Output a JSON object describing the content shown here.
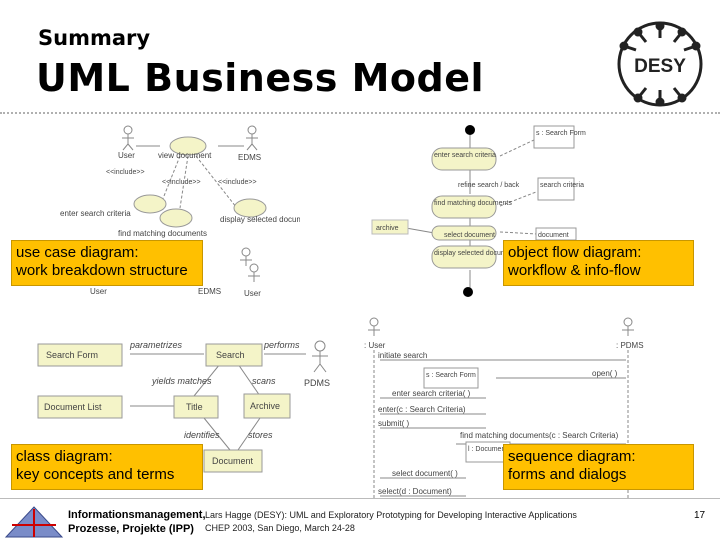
{
  "header": {
    "subtitle": "Summary",
    "title": "UML Business Model",
    "logo_text": "DESY"
  },
  "use_case": {
    "actors": [
      "User",
      "EDMS",
      "User",
      "EDMS",
      "User"
    ],
    "use_cases": [
      "view document",
      "enter search criteria",
      "find matching documents",
      "display selected document"
    ],
    "include_labels": [
      "<<include>>",
      "<<include>>",
      "<<include>>"
    ]
  },
  "activity": {
    "nodes": [
      "enter search criteria",
      "refine search / back",
      "find matching documents",
      "select document",
      "display selected document",
      "archive"
    ],
    "objects": [
      "s : Search Form",
      "search criteria",
      "document"
    ]
  },
  "class_diagram": {
    "classes": [
      "Search Form",
      "Search",
      "Document List",
      "Title",
      "Archive",
      "Document",
      "PDMS"
    ],
    "associations": [
      "parametrizes",
      "performs",
      "yields matches",
      "scans",
      "identifies",
      "stores"
    ]
  },
  "sequence": {
    "lifelines": [
      ": User",
      ": PDMS",
      "s : Search Form",
      "l : Document List"
    ],
    "messages": [
      "initiate search",
      "open( )",
      "enter search criteria( )",
      "enter(c : Search Criteria)",
      "submit( )",
      "find matching documents(c : Search Criteria)",
      "select document( )",
      "select(d : Document)"
    ]
  },
  "overlays": {
    "use_case": [
      "use case diagram:",
      "work breakdown structure"
    ],
    "object_flow": [
      "object flow diagram:",
      "workflow & info-flow"
    ],
    "class": [
      "class diagram:",
      "key concepts and terms"
    ],
    "sequence": [
      "sequence diagram:",
      "forms and dialogs"
    ]
  },
  "footer": {
    "org_line1": "Informationsmanagement,",
    "org_line2": "Prozesse, Projekte (IPP)",
    "citation_line1": "Lars Hagge (DESY): UML and Exploratory Prototyping for Developing Interactive Applications",
    "citation_line2": "CHEP 2003, San Diego, March 24-28",
    "page_number": "17"
  },
  "colors": {
    "overlay": "#ffc000",
    "usecase_fill": "#f4f4c8",
    "class_fill": "#f4f4c8"
  }
}
